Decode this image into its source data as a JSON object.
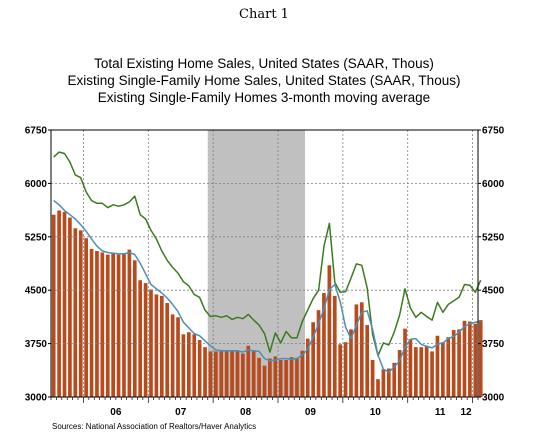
{
  "caption": "Chart 1",
  "source": "Sources:   National Association of Realtors/Haver Analytics",
  "chart_data": {
    "type": "bar",
    "titles": [
      {
        "text": "Total Existing Home Sales, United States (SAAR, Thous)",
        "color": "#3d7a1f"
      },
      {
        "text": "Existing Single-Family Home Sales, United States (SAAR, Thous)",
        "color": "#b84a1b"
      },
      {
        "text": "Existing Single-Family Homes 3-month moving average",
        "color": "#4a90b8"
      }
    ],
    "ylim": [
      3000,
      6750
    ],
    "yticks": [
      "3000",
      "3750",
      "4500",
      "5250",
      "6000",
      "6750"
    ],
    "x_labels": [
      "06",
      "07",
      "08",
      "09",
      "10",
      "11",
      "12"
    ],
    "x_start": "2005-07",
    "recession": {
      "start": "2007-12",
      "end": "2009-06",
      "color": "#c0c0c0"
    },
    "colors": {
      "total": "#3d7a1f",
      "single_family": "#b84a1b",
      "moving_average": "#4a90b8",
      "grid": "#808080"
    },
    "series": [
      {
        "name": "Total Existing Home Sales",
        "type": "line",
        "color": "#3d7a1f",
        "values": [
          6370,
          6440,
          6420,
          6300,
          6120,
          6080,
          5880,
          5760,
          5720,
          5720,
          5660,
          5700,
          5680,
          5700,
          5740,
          5820,
          5560,
          5500,
          5340,
          5220,
          5050,
          4920,
          4820,
          4740,
          4620,
          4560,
          4440,
          4400,
          4220,
          4130,
          4140,
          4120,
          4140,
          4090,
          4120,
          4100,
          4160,
          4080,
          4010,
          3890,
          3630,
          3900,
          3760,
          3920,
          3830,
          3830,
          4060,
          4220,
          4380,
          4500,
          5120,
          5440,
          4610,
          4470,
          4480,
          4670,
          4870,
          4850,
          4530,
          3880,
          3580,
          3760,
          3730,
          3910,
          4150,
          4520,
          4250,
          4120,
          4190,
          4130,
          4080,
          4330,
          4190,
          4300,
          4350,
          4400,
          4580,
          4570,
          4470,
          4640
        ]
      },
      {
        "name": "Existing Single-Family Home Sales",
        "type": "bar",
        "color": "#b84a1b",
        "values": [
          5560,
          5620,
          5600,
          5520,
          5370,
          5340,
          5230,
          5080,
          5050,
          5030,
          5000,
          5030,
          5000,
          5020,
          5070,
          4920,
          4640,
          4600,
          4510,
          4440,
          4420,
          4320,
          4160,
          4120,
          3880,
          3910,
          3880,
          3800,
          3700,
          3640,
          3640,
          3660,
          3660,
          3640,
          3650,
          3610,
          3720,
          3640,
          3550,
          3440,
          3540,
          3570,
          3520,
          3520,
          3560,
          3550,
          3650,
          3820,
          4050,
          4220,
          4460,
          4850,
          4420,
          3740,
          3770,
          3950,
          4300,
          4330,
          4010,
          3520,
          3250,
          3390,
          3400,
          3480,
          3660,
          3960,
          3810,
          3700,
          3700,
          3720,
          3640,
          3860,
          3770,
          3840,
          3940,
          3950,
          4070,
          4060,
          4030,
          4080
        ]
      },
      {
        "name": "Existing Single-Family Homes 3-month moving average",
        "type": "line",
        "color": "#4a90b8",
        "values": [
          5760,
          5700,
          5620,
          5560,
          5500,
          5420,
          5330,
          5220,
          5120,
          5050,
          5030,
          5020,
          5010,
          5010,
          5030,
          5000,
          4880,
          4730,
          4580,
          4520,
          4460,
          4390,
          4300,
          4200,
          4050,
          3970,
          3890,
          3860,
          3790,
          3720,
          3660,
          3650,
          3650,
          3650,
          3650,
          3630,
          3660,
          3650,
          3640,
          3540,
          3510,
          3520,
          3540,
          3540,
          3530,
          3540,
          3590,
          3670,
          3840,
          4030,
          4240,
          4510,
          4580,
          4340,
          3980,
          3820,
          4010,
          4190,
          4210,
          3950,
          3590,
          3390,
          3350,
          3420,
          3510,
          3700,
          3810,
          3820,
          3740,
          3710,
          3690,
          3740,
          3760,
          3820,
          3850,
          3910,
          3990,
          4030,
          4050,
          4060
        ]
      }
    ]
  }
}
